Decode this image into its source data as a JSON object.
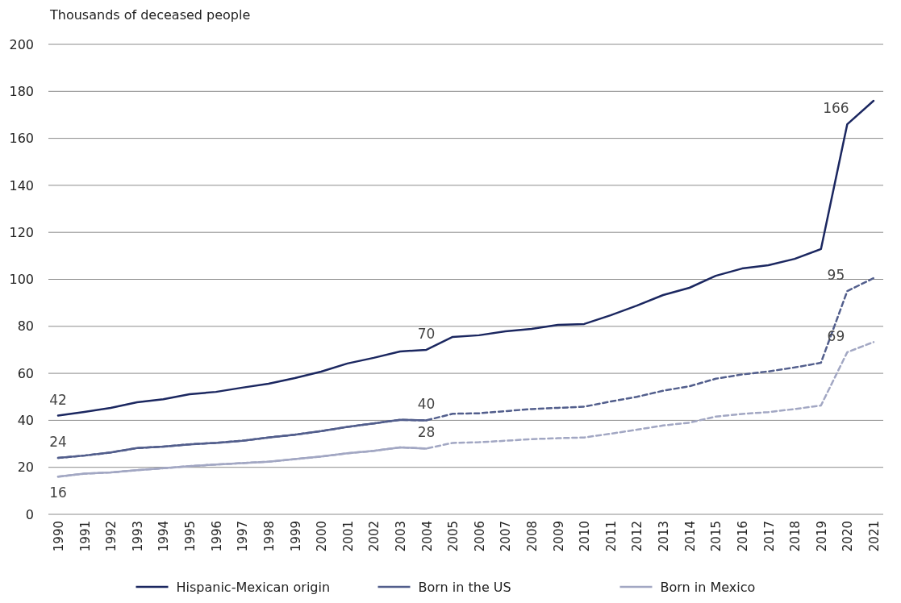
{
  "chart_data": {
    "type": "line",
    "ylabel": "Thousands of deceased people",
    "categories": [
      "1990",
      "1991",
      "1992",
      "1993",
      "1994",
      "1995",
      "1996",
      "1997",
      "1998",
      "1999",
      "2000",
      "2001",
      "2002",
      "2003",
      "2004",
      "2005",
      "2006",
      "2007",
      "2008",
      "2009",
      "2010",
      "2011",
      "2012",
      "2013",
      "2014",
      "2015",
      "2016",
      "2017",
      "2018",
      "2019",
      "2020",
      "2021"
    ],
    "ylim": [
      0,
      200
    ],
    "yticks": [
      0,
      20,
      40,
      60,
      80,
      100,
      120,
      140,
      160,
      180,
      200
    ],
    "grid": "y",
    "legend": "bottom",
    "series": [
      {
        "name": "Hispanic-Mexican origin",
        "color": "#1b2760",
        "line_style": "solid",
        "values": [
          42,
          43.6,
          45.3,
          47.7,
          49,
          51.1,
          52.1,
          53.9,
          55.6,
          58,
          60.7,
          64.2,
          66.6,
          69.3,
          70,
          75.5,
          76.2,
          77.9,
          78.9,
          80.6,
          81,
          84.7,
          88.8,
          93.3,
          96.4,
          101.5,
          104.6,
          106,
          108.7,
          112.9,
          166,
          176
        ],
        "value_labels": [
          "42",
          null,
          null,
          null,
          null,
          null,
          null,
          null,
          null,
          null,
          null,
          null,
          null,
          null,
          "70",
          null,
          null,
          null,
          null,
          null,
          null,
          null,
          null,
          null,
          null,
          null,
          null,
          null,
          null,
          null,
          "166",
          null
        ]
      },
      {
        "color": "#525e8c",
        "line_style": "dashed",
        "values": [
          24,
          25,
          26.3,
          28.2,
          28.8,
          29.8,
          30.4,
          31.3,
          32.7,
          33.9,
          35.4,
          37.2,
          38.7,
          40.2,
          40,
          42.8,
          43,
          43.9,
          44.8,
          45.3,
          45.8,
          48,
          50,
          52.6,
          54.5,
          57.7,
          59.5,
          60.8,
          62.5,
          64.5,
          95,
          100.5
        ],
        "value_labels": [
          null,
          null,
          null,
          null,
          null,
          null,
          null,
          null,
          null,
          null,
          null,
          null,
          null,
          null,
          null,
          null,
          null,
          null,
          null,
          null,
          null,
          null,
          null,
          null,
          null,
          null,
          null,
          null,
          null,
          null,
          "95",
          null
        ]
      },
      {
        "name": "Born in the US",
        "color": "#525e8c",
        "line_style": "solid",
        "values": [
          24,
          25,
          26.3,
          28.2,
          28.8,
          29.8,
          30.4,
          31.3,
          32.7,
          33.9,
          35.4,
          37.2,
          38.7,
          40.2,
          40,
          null,
          null,
          null,
          null,
          null,
          null,
          null,
          null,
          null,
          null,
          null,
          null,
          null,
          null,
          null,
          null,
          null
        ],
        "value_labels": [
          "24",
          null,
          null,
          null,
          null,
          null,
          null,
          null,
          null,
          null,
          null,
          null,
          null,
          null,
          "40",
          null,
          null,
          null,
          null,
          null,
          null,
          null,
          null,
          null,
          null,
          null,
          null,
          null,
          null,
          null,
          null,
          null
        ]
      },
      {
        "color": "#a2a7c3",
        "line_style": "dashed",
        "values": [
          16,
          17.3,
          17.8,
          18.8,
          19.6,
          20.5,
          21.2,
          21.8,
          22.4,
          23.5,
          24.6,
          26,
          27,
          28.5,
          28,
          30.4,
          30.7,
          31.3,
          32,
          32.4,
          32.7,
          34.3,
          36,
          37.8,
          39,
          41.6,
          42.7,
          43.5,
          44.8,
          46.3,
          69,
          73.3
        ],
        "value_labels": [
          null,
          null,
          null,
          null,
          null,
          null,
          null,
          null,
          null,
          null,
          null,
          null,
          null,
          null,
          null,
          null,
          null,
          null,
          null,
          null,
          null,
          null,
          null,
          null,
          null,
          null,
          null,
          null,
          null,
          null,
          "69",
          null
        ]
      },
      {
        "name": "Born in Mexico",
        "color": "#a2a7c3",
        "line_style": "solid",
        "values": [
          16,
          17.3,
          17.8,
          18.8,
          19.6,
          20.5,
          21.2,
          21.8,
          22.4,
          23.5,
          24.6,
          26,
          27,
          28.5,
          28,
          null,
          null,
          null,
          null,
          null,
          null,
          null,
          null,
          null,
          null,
          null,
          null,
          null,
          null,
          null,
          null,
          null
        ],
        "value_labels": [
          "16",
          null,
          null,
          null,
          null,
          null,
          null,
          null,
          null,
          null,
          null,
          null,
          null,
          null,
          "28",
          null,
          null,
          null,
          null,
          null,
          null,
          null,
          null,
          null,
          null,
          null,
          null,
          null,
          null,
          null,
          null,
          null
        ]
      }
    ]
  }
}
